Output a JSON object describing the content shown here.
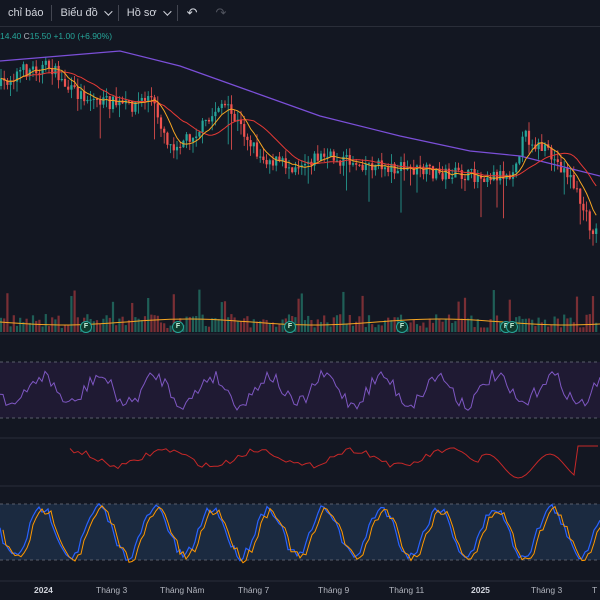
{
  "toolbar": {
    "indicators_label": "chỉ báo",
    "chart_label": "Biểu đồ",
    "profile_label": "Hồ sơ",
    "undo_icon": "undo-icon",
    "redo_icon": "redo-icon"
  },
  "ohlc": {
    "low_value": "14.40",
    "close_key": "C",
    "close_value": "15.50",
    "change": "+1.00 (+6.90%)"
  },
  "colors": {
    "background": "#131722",
    "up": "#26a69a",
    "down": "#ef5350",
    "ma_long": "#7b4fd8",
    "ma_mid": "#e53935",
    "ma_short": "#f6a623",
    "rsi": "#7e57c2",
    "macd": "#c62828",
    "stoch_k": "#2962ff",
    "stoch_d": "#ff9800"
  },
  "x_axis": {
    "labels": [
      "2024",
      "Tháng 3",
      "Tháng Năm",
      "Tháng 7",
      "Tháng 9",
      "Tháng 11",
      "2025",
      "Tháng 3",
      "T"
    ]
  },
  "event_badges": {
    "label": "F",
    "count": 6
  }
}
